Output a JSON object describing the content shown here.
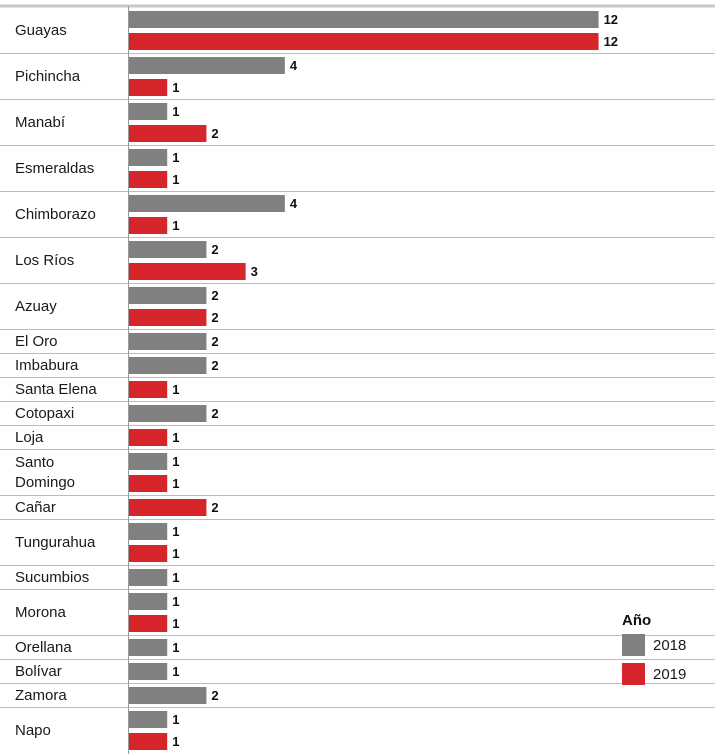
{
  "chart_data": {
    "type": "bar",
    "orientation": "horizontal",
    "categories": [
      "Guayas",
      "Pichincha",
      "Manabí",
      "Esmeraldas",
      "Chimborazo",
      "Los Ríos",
      "Azuay",
      "El Oro",
      "Imbabura",
      "Santa Elena",
      "Cotopaxi",
      "Loja",
      "Santo Domingo",
      "Cañar",
      "Tungurahua",
      "Sucumbios",
      "Morona",
      "Orellana",
      "Bolívar",
      "Zamora",
      "Napo"
    ],
    "series": [
      {
        "name": "2018",
        "color": "#808080",
        "values": [
          12,
          4,
          1,
          1,
          4,
          2,
          2,
          2,
          2,
          null,
          2,
          null,
          1,
          null,
          1,
          1,
          1,
          1,
          1,
          2,
          1
        ]
      },
      {
        "name": "2019",
        "color": "#d7262b",
        "values": [
          12,
          1,
          2,
          1,
          1,
          3,
          2,
          null,
          null,
          1,
          null,
          1,
          1,
          2,
          1,
          null,
          1,
          null,
          null,
          null,
          1
        ]
      }
    ],
    "xlim": [
      0,
      14
    ],
    "xticks": [
      0,
      2,
      4,
      6,
      8,
      10,
      12,
      14
    ],
    "legend": {
      "title": "Año",
      "position": "bottom-right"
    },
    "grid": false
  }
}
